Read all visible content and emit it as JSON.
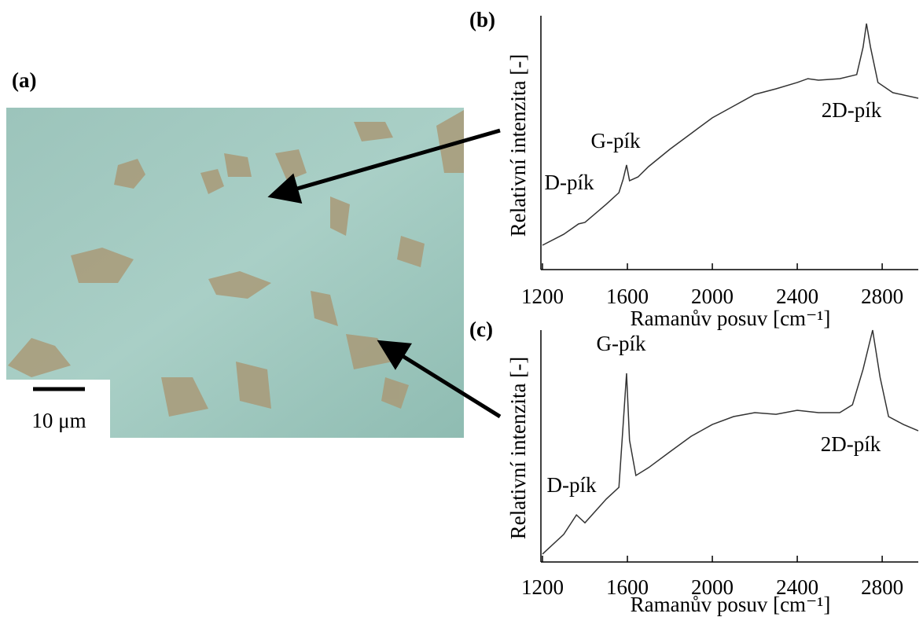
{
  "image_panel": {
    "label": "(a)",
    "scale_bar": "10 μm"
  },
  "chart_data": [
    {
      "type": "line",
      "label": "(b)",
      "xlabel": "Ramanův posuv [cm⁻¹]",
      "ylabel": "Relativní intenzita [-]",
      "annotations": [
        "D-pík",
        "G-pík",
        "2D-pík"
      ],
      "x": [
        1200,
        1300,
        1370,
        1400,
        1500,
        1560,
        1580,
        1596,
        1610,
        1650,
        1700,
        1800,
        1900,
        2000,
        2100,
        2200,
        2300,
        2400,
        2450,
        2500,
        2600,
        2680,
        2710,
        2726,
        2745,
        2780,
        2850,
        2970
      ],
      "series": [
        {
          "color": "#333333",
          "values": [
            9.6,
            13.9,
            18,
            18.6,
            25.7,
            30.3,
            35.6,
            41.2,
            35,
            36.5,
            40.6,
            47.4,
            53.6,
            59.8,
            64.4,
            69,
            71.2,
            73.7,
            75.2,
            74.6,
            75.2,
            76.8,
            87.6,
            96.9,
            87.6,
            73.7,
            69.7,
            67.5
          ]
        }
      ],
      "xlim": [
        1200,
        2970
      ],
      "xticks": [
        1200,
        1600,
        2000,
        2400,
        2800
      ],
      "ylim": [
        0,
        100
      ]
    },
    {
      "type": "line",
      "label": "(c)",
      "xlabel": "Ramanův posuv [cm⁻¹]",
      "ylabel": "Relativní intenzita [-]",
      "annotations": [
        "D-pík",
        "G-pík",
        "2D-pík"
      ],
      "x": [
        1200,
        1300,
        1360,
        1400,
        1500,
        1560,
        1580,
        1596,
        1610,
        1640,
        1700,
        1800,
        1900,
        2000,
        2100,
        2200,
        2300,
        2400,
        2500,
        2600,
        2660,
        2710,
        2755,
        2790,
        2830,
        2900,
        2970
      ],
      "series": [
        {
          "color": "#333333",
          "values": [
            3.4,
            11.9,
            20.3,
            16.9,
            27.1,
            32.2,
            59.3,
            81.4,
            52.5,
            37.3,
            40.7,
            47.5,
            54.2,
            59.3,
            62.7,
            64.4,
            63.7,
            65.4,
            64.4,
            64.4,
            67.8,
            83.1,
            100,
            79.7,
            62.7,
            59.3,
            56.6
          ]
        }
      ],
      "xlim": [
        1200,
        2970
      ],
      "xticks": [
        1200,
        1600,
        2000,
        2400,
        2800
      ],
      "ylim": [
        0,
        100
      ]
    }
  ]
}
